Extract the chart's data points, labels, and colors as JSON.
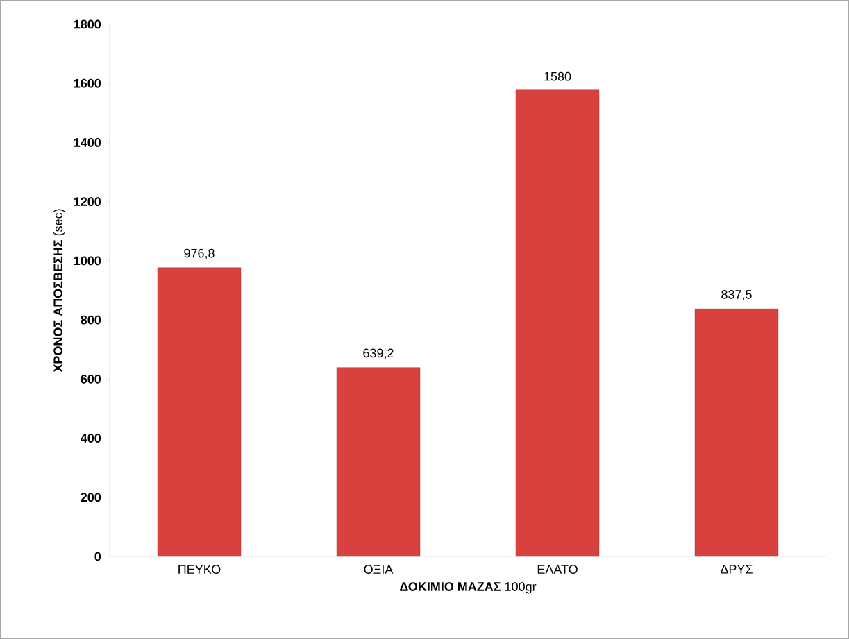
{
  "chart_data": {
    "type": "bar",
    "xlabel": "**ΔΟΚΙΜΙΟ ΜΑΖΑΣ** 100gr",
    "ylabel": "**ΧΡΟΝΟΣ ΑΠΟΣΒΕΣΗΣ** (sec)",
    "categories": [
      "ΠΕΥΚΟ",
      "ΟΞΙΑ",
      "ΕΛΑΤΟ",
      "ΔΡΥΣ"
    ],
    "values": [
      976.8,
      639.2,
      1580,
      837.5
    ],
    "value_labels": [
      "976,8",
      "639,2",
      "1580",
      "837,5"
    ],
    "color": "#d9413f",
    "ylim": [
      0,
      1800
    ],
    "yticks": [
      0,
      200,
      400,
      600,
      800,
      1000,
      1200,
      1400,
      1600,
      1800
    ],
    "grid": false
  }
}
